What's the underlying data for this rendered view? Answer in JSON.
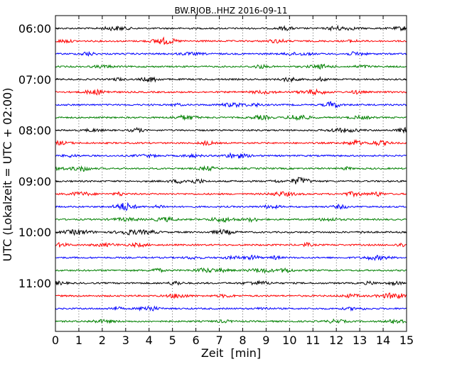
{
  "chart_data": {
    "type": "line",
    "title": "BW.RJOB..HHZ 2016-09-11",
    "xlabel": "Zeit  [min]",
    "ylabel": "UTC (Lokalzeit = UTC + 02:00)",
    "xlim": [
      0,
      15
    ],
    "x_ticks": [
      "0",
      "1",
      "2",
      "3",
      "4",
      "5",
      "6",
      "7",
      "8",
      "9",
      "10",
      "11",
      "12",
      "13",
      "14",
      "15"
    ],
    "y_tick_labels": [
      "06:00",
      "07:00",
      "08:00",
      "09:00",
      "10:00",
      "11:00"
    ],
    "grid": "vertical dotted lines at each minute",
    "trace_colors": [
      "#000000",
      "#ff0000",
      "#0000ff",
      "#008000"
    ],
    "series": [
      {
        "start": "06:00",
        "color": "#000000"
      },
      {
        "start": "06:15",
        "color": "#ff0000"
      },
      {
        "start": "06:30",
        "color": "#0000ff"
      },
      {
        "start": "06:45",
        "color": "#008000"
      },
      {
        "start": "07:00",
        "color": "#000000"
      },
      {
        "start": "07:15",
        "color": "#ff0000"
      },
      {
        "start": "07:30",
        "color": "#0000ff"
      },
      {
        "start": "07:45",
        "color": "#008000"
      },
      {
        "start": "08:00",
        "color": "#000000"
      },
      {
        "start": "08:15",
        "color": "#ff0000"
      },
      {
        "start": "08:30",
        "color": "#0000ff"
      },
      {
        "start": "08:45",
        "color": "#008000"
      },
      {
        "start": "09:00",
        "color": "#000000"
      },
      {
        "start": "09:15",
        "color": "#ff0000"
      },
      {
        "start": "09:30",
        "color": "#0000ff"
      },
      {
        "start": "09:45",
        "color": "#008000"
      },
      {
        "start": "10:00",
        "color": "#000000"
      },
      {
        "start": "10:15",
        "color": "#ff0000"
      },
      {
        "start": "10:30",
        "color": "#0000ff"
      },
      {
        "start": "10:45",
        "color": "#008000"
      },
      {
        "start": "11:00",
        "color": "#000000"
      },
      {
        "start": "11:15",
        "color": "#ff0000"
      },
      {
        "start": "11:30",
        "color": "#0000ff"
      },
      {
        "start": "11:45",
        "color": "#008000"
      }
    ]
  }
}
